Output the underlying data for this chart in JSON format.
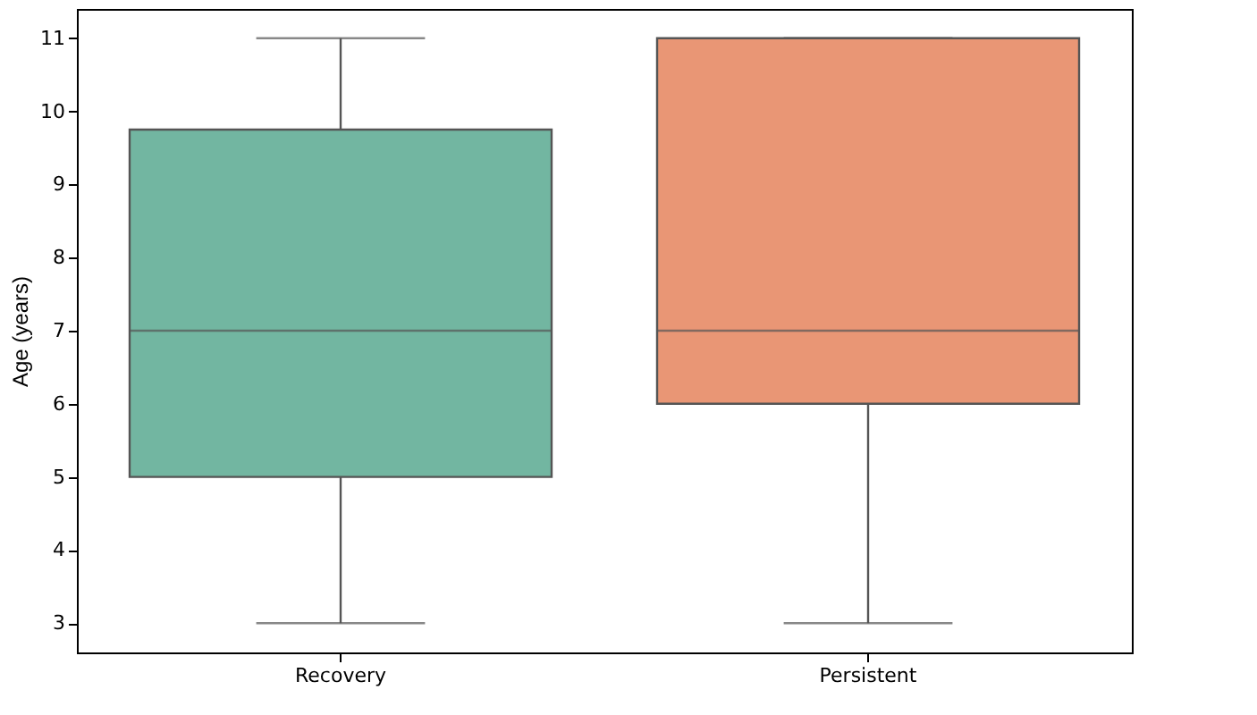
{
  "chart_data": {
    "type": "box",
    "ylabel": "Age (years)",
    "categories": [
      "Recovery",
      "Persistent"
    ],
    "colors": [
      "#72b6a1",
      "#e99675"
    ],
    "boxes": [
      {
        "low": 3,
        "q1": 5,
        "median": 7,
        "q3": 9.75,
        "high": 11
      },
      {
        "low": 3,
        "q1": 6,
        "median": 7,
        "q3": 11,
        "high": 11
      }
    ],
    "ylim": [
      2.6,
      11.4
    ],
    "yticks": [
      3,
      4,
      5,
      6,
      7,
      8,
      9,
      10,
      11
    ],
    "grid": false
  }
}
